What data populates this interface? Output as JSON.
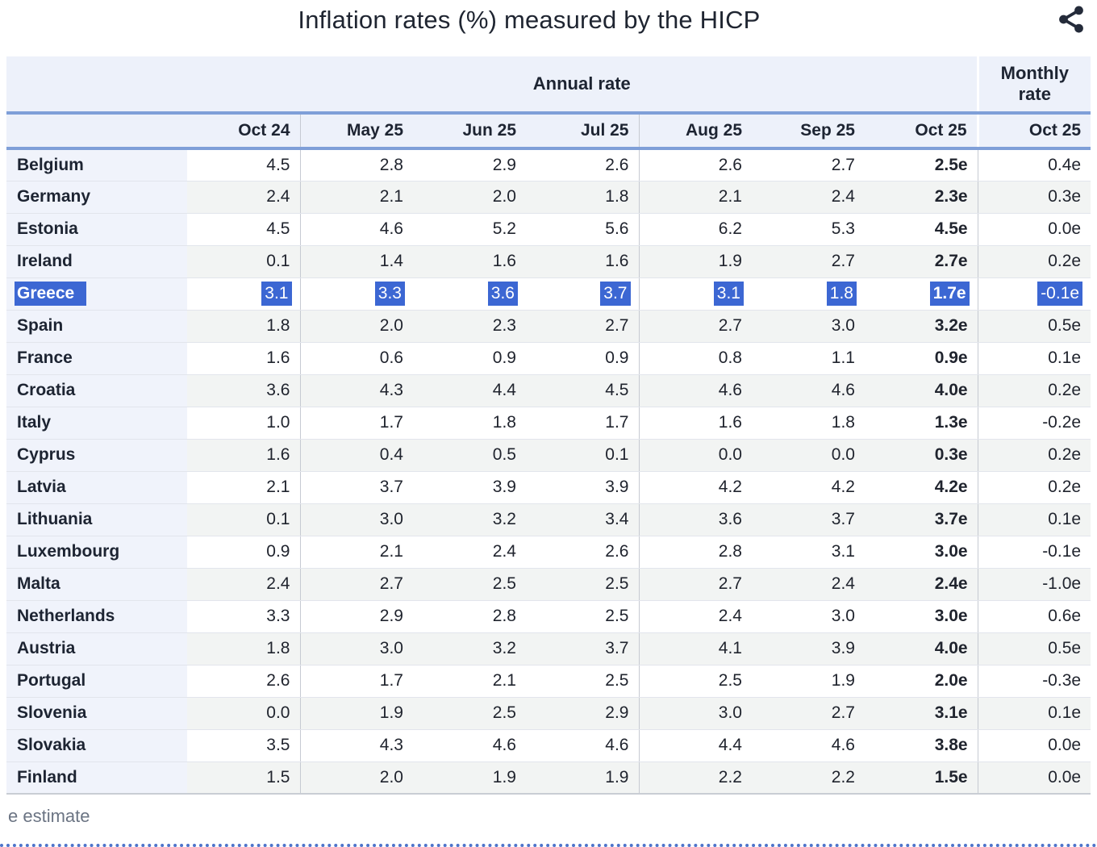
{
  "title": "Inflation rates (%) measured by the HICP",
  "footnote": "e estimate",
  "icons": {
    "share": "share-icon"
  },
  "colors": {
    "selection_blue": "#3c67d3",
    "rule_blue": "#7f9fd8",
    "header_bg": "#edf1fa",
    "country_col_bg": "#f0f3fb",
    "row_stripe": "#f2f4f3",
    "column_divider": "#c6cad2",
    "footnote_gray": "#6b7483",
    "bottom_dotted_blue": "#4e74ca",
    "text_dark": "#1d2432"
  },
  "chart_data": {
    "type": "table",
    "title": "Inflation rates (%) measured by the HICP",
    "column_groups": [
      {
        "label": "Annual rate",
        "span": 7
      },
      {
        "label": "Monthly rate",
        "span": 1
      }
    ],
    "columns": [
      "Oct 24",
      "May 25",
      "Jun 25",
      "Jul 25",
      "Aug 25",
      "Sep 25",
      "Oct 25",
      "Oct 25"
    ],
    "selected_row": "Greece",
    "rows": [
      {
        "country": "Belgium",
        "values": [
          "4.5",
          "2.8",
          "2.9",
          "2.6",
          "2.6",
          "2.7",
          "2.5e",
          "0.4e"
        ]
      },
      {
        "country": "Germany",
        "values": [
          "2.4",
          "2.1",
          "2.0",
          "1.8",
          "2.1",
          "2.4",
          "2.3e",
          "0.3e"
        ]
      },
      {
        "country": "Estonia",
        "values": [
          "4.5",
          "4.6",
          "5.2",
          "5.6",
          "6.2",
          "5.3",
          "4.5e",
          "0.0e"
        ]
      },
      {
        "country": "Ireland",
        "values": [
          "0.1",
          "1.4",
          "1.6",
          "1.6",
          "1.9",
          "2.7",
          "2.7e",
          "0.2e"
        ]
      },
      {
        "country": "Greece",
        "values": [
          "3.1",
          "3.3",
          "3.6",
          "3.7",
          "3.1",
          "1.8",
          "1.7e",
          "-0.1e"
        ]
      },
      {
        "country": "Spain",
        "values": [
          "1.8",
          "2.0",
          "2.3",
          "2.7",
          "2.7",
          "3.0",
          "3.2e",
          "0.5e"
        ]
      },
      {
        "country": "France",
        "values": [
          "1.6",
          "0.6",
          "0.9",
          "0.9",
          "0.8",
          "1.1",
          "0.9e",
          "0.1e"
        ]
      },
      {
        "country": "Croatia",
        "values": [
          "3.6",
          "4.3",
          "4.4",
          "4.5",
          "4.6",
          "4.6",
          "4.0e",
          "0.2e"
        ]
      },
      {
        "country": "Italy",
        "values": [
          "1.0",
          "1.7",
          "1.8",
          "1.7",
          "1.6",
          "1.8",
          "1.3e",
          "-0.2e"
        ]
      },
      {
        "country": "Cyprus",
        "values": [
          "1.6",
          "0.4",
          "0.5",
          "0.1",
          "0.0",
          "0.0",
          "0.3e",
          "0.2e"
        ]
      },
      {
        "country": "Latvia",
        "values": [
          "2.1",
          "3.7",
          "3.9",
          "3.9",
          "4.2",
          "4.2",
          "4.2e",
          "0.2e"
        ]
      },
      {
        "country": "Lithuania",
        "values": [
          "0.1",
          "3.0",
          "3.2",
          "3.4",
          "3.6",
          "3.7",
          "3.7e",
          "0.1e"
        ]
      },
      {
        "country": "Luxembourg",
        "values": [
          "0.9",
          "2.1",
          "2.4",
          "2.6",
          "2.8",
          "3.1",
          "3.0e",
          "-0.1e"
        ]
      },
      {
        "country": "Malta",
        "values": [
          "2.4",
          "2.7",
          "2.5",
          "2.5",
          "2.7",
          "2.4",
          "2.4e",
          "-1.0e"
        ]
      },
      {
        "country": "Netherlands",
        "values": [
          "3.3",
          "2.9",
          "2.8",
          "2.5",
          "2.4",
          "3.0",
          "3.0e",
          "0.6e"
        ]
      },
      {
        "country": "Austria",
        "values": [
          "1.8",
          "3.0",
          "3.2",
          "3.7",
          "4.1",
          "3.9",
          "4.0e",
          "0.5e"
        ]
      },
      {
        "country": "Portugal",
        "values": [
          "2.6",
          "1.7",
          "2.1",
          "2.5",
          "2.5",
          "1.9",
          "2.0e",
          "-0.3e"
        ]
      },
      {
        "country": "Slovenia",
        "values": [
          "0.0",
          "1.9",
          "2.5",
          "2.9",
          "3.0",
          "2.7",
          "3.1e",
          "0.1e"
        ]
      },
      {
        "country": "Slovakia",
        "values": [
          "3.5",
          "4.3",
          "4.6",
          "4.6",
          "4.4",
          "4.6",
          "3.8e",
          "0.0e"
        ]
      },
      {
        "country": "Finland",
        "values": [
          "1.5",
          "2.0",
          "1.9",
          "1.9",
          "2.2",
          "2.2",
          "1.5e",
          "0.0e"
        ]
      }
    ],
    "footnote": "e estimate"
  }
}
